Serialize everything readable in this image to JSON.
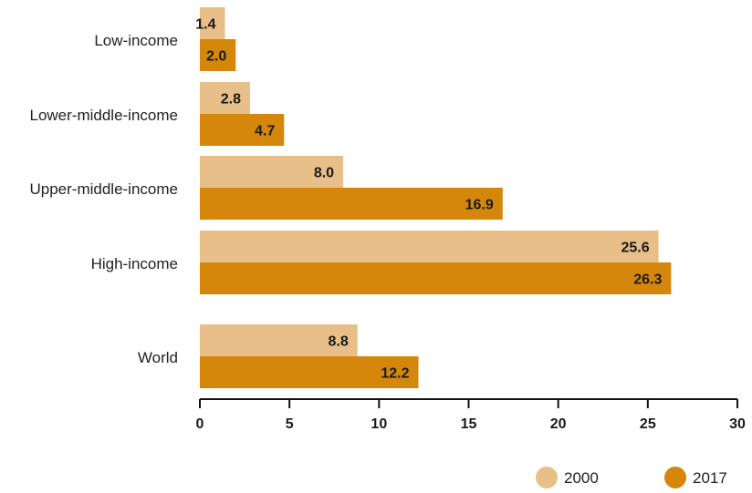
{
  "chart_data": {
    "type": "bar",
    "orientation": "horizontal",
    "categories": [
      "Low-income",
      "Lower-middle-income",
      "Upper-middle-income",
      "High-income",
      "World"
    ],
    "series": [
      {
        "name": "2000",
        "values": [
          1.4,
          2.8,
          8.0,
          25.6,
          8.8
        ],
        "color": "#e8bf88"
      },
      {
        "name": "2017",
        "values": [
          2.0,
          4.7,
          16.9,
          26.3,
          12.2
        ],
        "color": "#d4870a"
      }
    ],
    "value_labels": [
      [
        "1.4",
        "2.8",
        "8.0",
        "25.6",
        "8.8"
      ],
      [
        "2.0",
        "4.7",
        "16.9",
        "26.3",
        "12.2"
      ]
    ],
    "xlim": [
      0,
      30
    ],
    "xticks": [
      "0",
      "5",
      "10",
      "15",
      "20",
      "25",
      "30"
    ],
    "grid": false,
    "legend_position": "bottom-right"
  }
}
